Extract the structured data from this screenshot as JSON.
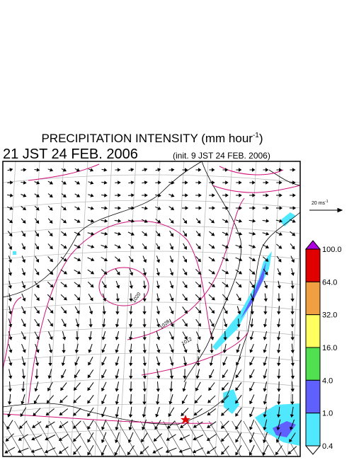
{
  "header": {
    "title": "PRECIPITATION INTENSITY (mm hour",
    "title_exponent": "-1",
    "title_close": ")",
    "valid_time": "21 JST 24 FEB. 2006",
    "init_time": "(init. 9 JST 24 FEB. 2006)"
  },
  "reference_vector": {
    "label": "20 ms",
    "exponent": "-1"
  },
  "map": {
    "isobar_labels": [
      "1020",
      "1028",
      "1012"
    ]
  },
  "colorbar": {
    "over_color": "#b000e0",
    "under_color": "#ffffff",
    "segments": [
      {
        "color": "#e00000"
      },
      {
        "color": "#f0a040"
      },
      {
        "color": "#ffff60"
      },
      {
        "color": "#50e050"
      },
      {
        "color": "#6060ff"
      },
      {
        "color": "#50e8ff"
      }
    ],
    "labels": [
      "100.0",
      "64.0",
      "32.0",
      "16.0",
      "4.0",
      "1.0",
      "0.4"
    ]
  }
}
